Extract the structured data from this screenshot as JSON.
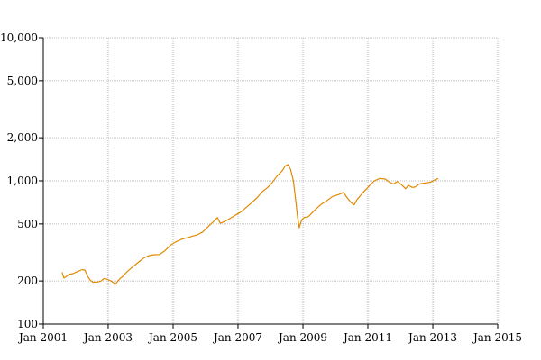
{
  "chart_data": {
    "type": "line",
    "title": "",
    "xlabel": "",
    "ylabel": "",
    "scale": {
      "x": "time",
      "y": "log"
    },
    "xlim": [
      "2001-01-01",
      "2015-01-01"
    ],
    "ylim": [
      100,
      10000
    ],
    "grid": true,
    "legend": "none",
    "x_ticks": [
      {
        "date": "2001-01-01",
        "label": "Jan 2001"
      },
      {
        "date": "2003-01-01",
        "label": "Jan 2003"
      },
      {
        "date": "2005-01-01",
        "label": "Jan 2005"
      },
      {
        "date": "2007-01-01",
        "label": "Jan 2007"
      },
      {
        "date": "2009-01-01",
        "label": "Jan 2009"
      },
      {
        "date": "2011-01-01",
        "label": "Jan 2011"
      },
      {
        "date": "2013-01-01",
        "label": "Jan 2013"
      },
      {
        "date": "2015-01-01",
        "label": "Jan 2015"
      }
    ],
    "y_ticks": [
      {
        "value": 100,
        "label": "100"
      },
      {
        "value": 200,
        "label": "200"
      },
      {
        "value": 500,
        "label": "500"
      },
      {
        "value": 1000,
        "label": "1,000"
      },
      {
        "value": 2000,
        "label": "2,000"
      },
      {
        "value": 5000,
        "label": "5,000"
      },
      {
        "value": 10000,
        "label": "10,000"
      }
    ],
    "series": [
      {
        "color": "#e08a00",
        "points": [
          [
            "2001-08-01",
            230
          ],
          [
            "2001-08-20",
            210
          ],
          [
            "2001-09-15",
            214
          ],
          [
            "2001-10-15",
            222
          ],
          [
            "2001-12-01",
            225
          ],
          [
            "2002-01-15",
            232
          ],
          [
            "2002-03-15",
            240
          ],
          [
            "2002-04-15",
            238
          ],
          [
            "2002-05-15",
            215
          ],
          [
            "2002-06-15",
            202
          ],
          [
            "2002-07-15",
            196
          ],
          [
            "2002-09-15",
            197
          ],
          [
            "2002-10-15",
            200
          ],
          [
            "2002-11-15",
            208
          ],
          [
            "2002-12-15",
            206
          ],
          [
            "2003-02-01",
            200
          ],
          [
            "2003-03-01",
            195
          ],
          [
            "2003-03-20",
            188
          ],
          [
            "2003-04-15",
            198
          ],
          [
            "2003-05-15",
            208
          ],
          [
            "2003-06-15",
            215
          ],
          [
            "2003-08-01",
            232
          ],
          [
            "2003-10-01",
            250
          ],
          [
            "2003-12-01",
            268
          ],
          [
            "2004-02-01",
            288
          ],
          [
            "2004-04-01",
            300
          ],
          [
            "2004-06-01",
            305
          ],
          [
            "2004-08-01",
            306
          ],
          [
            "2004-10-01",
            325
          ],
          [
            "2004-12-01",
            355
          ],
          [
            "2005-02-01",
            375
          ],
          [
            "2005-04-01",
            390
          ],
          [
            "2005-06-01",
            400
          ],
          [
            "2005-08-01",
            410
          ],
          [
            "2005-10-01",
            420
          ],
          [
            "2005-12-01",
            440
          ],
          [
            "2006-02-01",
            480
          ],
          [
            "2006-04-01",
            520
          ],
          [
            "2006-05-15",
            555
          ],
          [
            "2006-06-15",
            505
          ],
          [
            "2006-08-01",
            520
          ],
          [
            "2006-10-01",
            545
          ],
          [
            "2006-12-01",
            575
          ],
          [
            "2007-02-01",
            605
          ],
          [
            "2007-04-01",
            650
          ],
          [
            "2007-06-01",
            700
          ],
          [
            "2007-08-01",
            760
          ],
          [
            "2007-10-01",
            840
          ],
          [
            "2007-12-01",
            900
          ],
          [
            "2008-01-15",
            960
          ],
          [
            "2008-03-15",
            1080
          ],
          [
            "2008-05-15",
            1180
          ],
          [
            "2008-06-15",
            1270
          ],
          [
            "2008-07-15",
            1300
          ],
          [
            "2008-08-15",
            1200
          ],
          [
            "2008-09-15",
            1000
          ],
          [
            "2008-10-15",
            700
          ],
          [
            "2008-11-01",
            560
          ],
          [
            "2008-11-20",
            470
          ],
          [
            "2008-12-15",
            530
          ],
          [
            "2009-01-15",
            555
          ],
          [
            "2009-03-01",
            560
          ],
          [
            "2009-04-15",
            600
          ],
          [
            "2009-06-01",
            640
          ],
          [
            "2009-08-01",
            690
          ],
          [
            "2009-10-01",
            730
          ],
          [
            "2009-12-01",
            780
          ],
          [
            "2010-02-01",
            800
          ],
          [
            "2010-04-01",
            830
          ],
          [
            "2010-05-15",
            760
          ],
          [
            "2010-07-01",
            700
          ],
          [
            "2010-08-01",
            680
          ],
          [
            "2010-09-01",
            740
          ],
          [
            "2010-11-01",
            820
          ],
          [
            "2011-01-15",
            920
          ],
          [
            "2011-03-15",
            1000
          ],
          [
            "2011-05-15",
            1040
          ],
          [
            "2011-07-15",
            1030
          ],
          [
            "2011-09-01",
            980
          ],
          [
            "2011-10-15",
            950
          ],
          [
            "2011-12-01",
            990
          ],
          [
            "2012-01-15",
            940
          ],
          [
            "2012-03-01",
            880
          ],
          [
            "2012-04-01",
            930
          ],
          [
            "2012-05-15",
            900
          ],
          [
            "2012-06-15",
            905
          ],
          [
            "2012-08-01",
            950
          ],
          [
            "2012-10-01",
            965
          ],
          [
            "2012-12-01",
            975
          ],
          [
            "2013-01-15",
            1010
          ],
          [
            "2013-03-01",
            1040
          ]
        ]
      }
    ]
  }
}
